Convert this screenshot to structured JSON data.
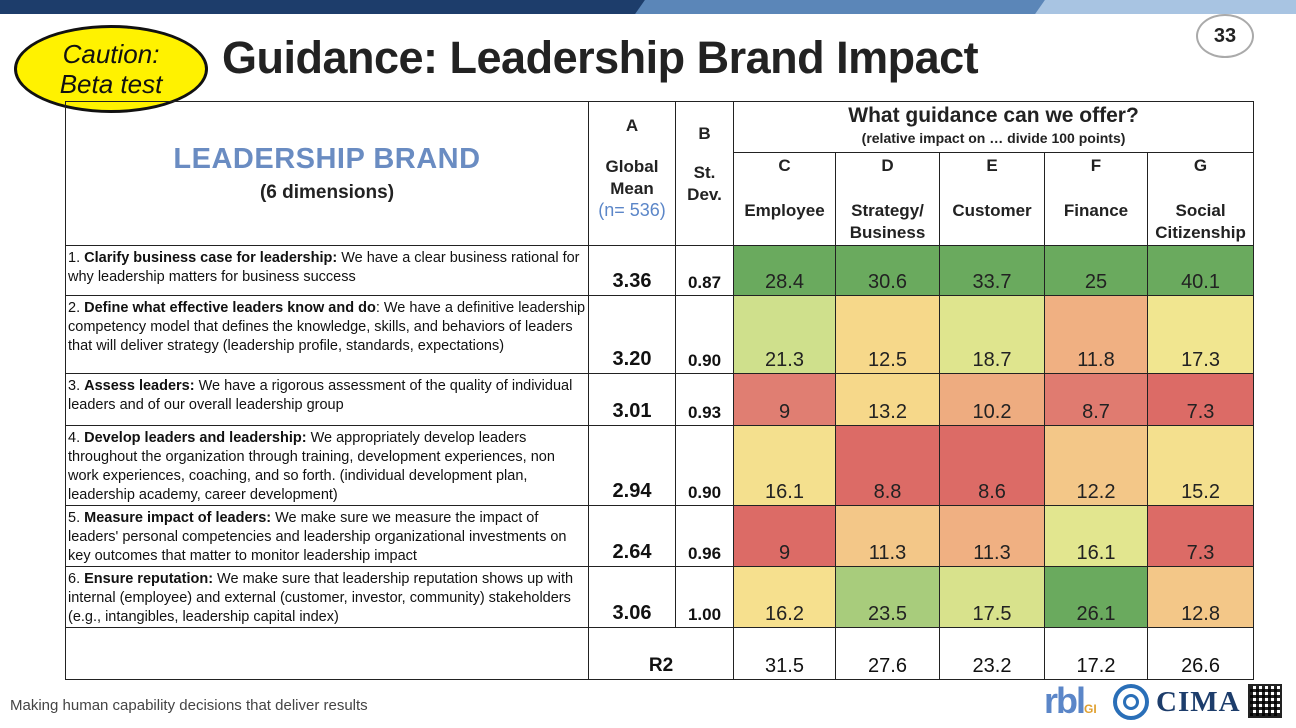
{
  "caution": {
    "line1": "Caution:",
    "line2": "Beta test"
  },
  "title": "Guidance: Leadership Brand Impact",
  "page_number": "33",
  "table": {
    "brand_title": "LEADERSHIP BRAND",
    "brand_sub": "(6 dimensions)",
    "col_a": {
      "letter": "A",
      "label1": "Global",
      "label2": "Mean",
      "n": "(n= 536)"
    },
    "col_b": {
      "letter": "B",
      "label1": "St.",
      "label2": "Dev."
    },
    "guidance_title": "What guidance can we offer?",
    "guidance_sub": "(relative impact on … divide 100 points)",
    "columns": [
      {
        "letter": "C",
        "line1": "Employee",
        "line2": ""
      },
      {
        "letter": "D",
        "line1": "Strategy/",
        "line2": "Business"
      },
      {
        "letter": "E",
        "line1": "Customer",
        "line2": ""
      },
      {
        "letter": "F",
        "line1": "Finance",
        "line2": ""
      },
      {
        "letter": "G",
        "line1": "Social",
        "line2": "Citizenship"
      }
    ],
    "rows": [
      {
        "num": "1.",
        "bold": "Clarify business case for leadership:",
        "text": " We have a clear business rational for why leadership matters for business success",
        "mean": "3.36",
        "sd": "0.87",
        "values": [
          "28.4",
          "30.6",
          "33.7",
          "25",
          "40.1"
        ],
        "colors": [
          "#6aaa5e",
          "#6aaa5e",
          "#6aaa5e",
          "#6aaa5e",
          "#6aaa5e"
        ]
      },
      {
        "num": "2.",
        "bold": "Define what effective leaders know and do",
        "text": ": We have a definitive leadership competency model that defines the knowledge, skills, and behaviors of leaders that will deliver strategy (leadership profile, standards, expectations)",
        "mean": "3.20",
        "sd": "0.90",
        "values": [
          "21.3",
          "12.5",
          "18.7",
          "11.8",
          "17.3"
        ],
        "colors": [
          "#cfe08c",
          "#f6d88a",
          "#dfe58e",
          "#f0b082",
          "#f1e690"
        ]
      },
      {
        "num": "3.",
        "bold": "Assess leaders:",
        "text": " We have a rigorous assessment of the quality of individual leaders and of our overall leadership group",
        "mean": "3.01",
        "sd": "0.93",
        "values": [
          "9",
          "13.2",
          "10.2",
          "8.7",
          "7.3"
        ],
        "colors": [
          "#e07e72",
          "#f6d88a",
          "#eeac80",
          "#e07b70",
          "#dc6b66"
        ]
      },
      {
        "num": "4.",
        "bold": "Develop leaders and leadership:",
        "text": "  We appropriately develop leaders throughout the organization through training, development experiences, non work experiences, coaching, and so forth.  (individual development plan, leadership academy, career development)",
        "mean": "2.94",
        "sd": "0.90",
        "values": [
          "16.1",
          "8.8",
          "8.6",
          "12.2",
          "15.2"
        ],
        "colors": [
          "#f4e08e",
          "#dc6b66",
          "#dc6b66",
          "#f3c788",
          "#f4e08e"
        ]
      },
      {
        "num": "5.",
        "bold": "Measure impact of leaders:",
        "text": " We make sure we measure the impact of leaders' personal competencies and leadership organizational investments on key outcomes that matter to monitor leadership impact",
        "mean": "2.64",
        "sd": "0.96",
        "values": [
          "9",
          "11.3",
          "11.3",
          "16.1",
          "7.3"
        ],
        "colors": [
          "#dc6b66",
          "#f3c788",
          "#f0b082",
          "#e2e68f",
          "#dc6b66"
        ]
      },
      {
        "num": "6.",
        "bold": "Ensure reputation:",
        "text": " We make sure that leadership reputation shows up with internal (employee) and external (customer, investor, community) stakeholders (e.g., intangibles, leadership capital index)",
        "mean": "3.06",
        "sd": "1.00",
        "values": [
          "16.2",
          "23.5",
          "17.5",
          "26.1",
          "12.8"
        ],
        "colors": [
          "#f6e08e",
          "#a8cc7c",
          "#d8e28c",
          "#6aaa5e",
          "#f3c788"
        ]
      }
    ],
    "r2_label": "R2",
    "r2_values": [
      "31.5",
      "27.6",
      "23.2",
      "17.2",
      "26.6"
    ]
  },
  "footer": "Making human capability decisions that deliver results",
  "logos": {
    "rbl": "rbl",
    "rbl_suffix": "GI",
    "cima": "CIMA"
  }
}
